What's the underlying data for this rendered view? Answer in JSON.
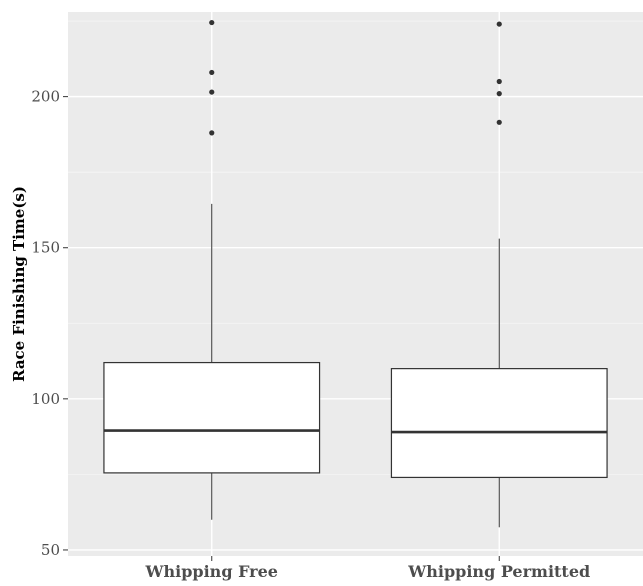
{
  "chart_data": {
    "type": "box",
    "title": "",
    "xlabel": "",
    "ylabel": "Race Finishing Time(s)",
    "ylim": [
      48,
      228
    ],
    "yticks": [
      50,
      100,
      150,
      200
    ],
    "grid": true,
    "legend": "none",
    "categories": [
      "Whipping Free",
      "Whipping Permitted"
    ],
    "boxes": [
      {
        "category": "Whipping Free",
        "whisker_low": 60,
        "q1": 75.5,
        "median": 89.5,
        "q3": 112,
        "whisker_high": 164.5,
        "outliers": [
          188,
          201.5,
          208,
          224.5
        ]
      },
      {
        "category": "Whipping Permitted",
        "whisker_low": 57.5,
        "q1": 74,
        "median": 89,
        "q3": 110,
        "whisker_high": 153,
        "outliers": [
          191.5,
          201,
          205,
          224
        ]
      }
    ]
  },
  "colors": {
    "panel_background": "#ebebeb",
    "grid_major": "#ffffff",
    "grid_minor": "#f5f5f5",
    "box_fill": "#ffffff",
    "box_stroke": "#333333",
    "outlier": "#333333"
  }
}
